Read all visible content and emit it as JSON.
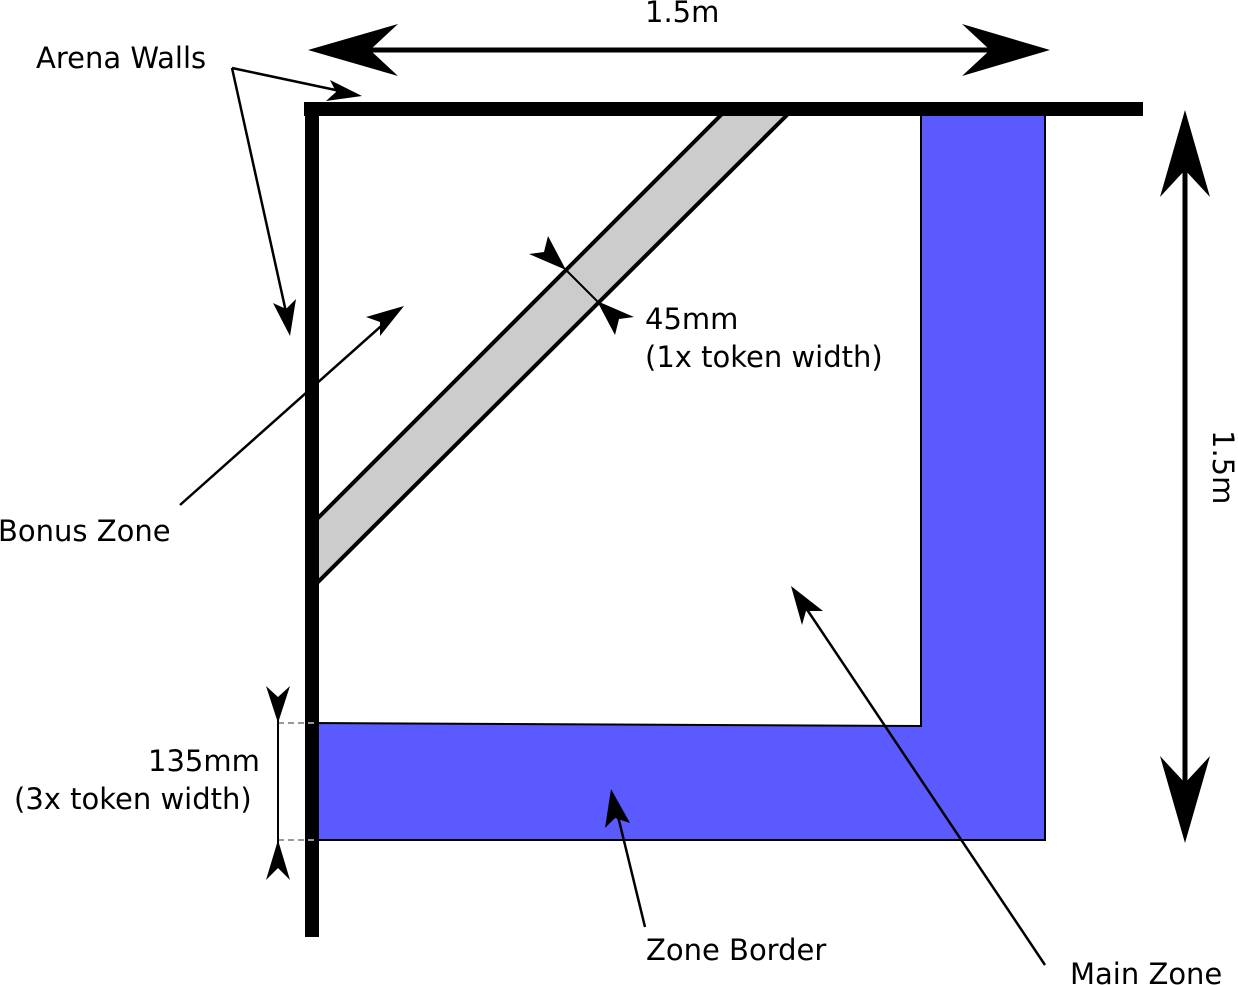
{
  "labels": {
    "arena_walls": "Arena Walls",
    "width_dimension": "1.5m",
    "height_dimension": "1.5m",
    "bonus_zone": "Bonus Zone",
    "bonus_width_value": "45mm",
    "bonus_width_note": "(1x token width)",
    "border_width_value": "135mm",
    "border_width_note": "(3x token width)",
    "zone_border": "Zone Border",
    "main_zone": "Main Zone"
  },
  "colors": {
    "zone_border_fill": "#5a5aff",
    "bonus_zone_fill": "#cccccc",
    "wall": "#000000",
    "guide_dash": "#999999"
  }
}
